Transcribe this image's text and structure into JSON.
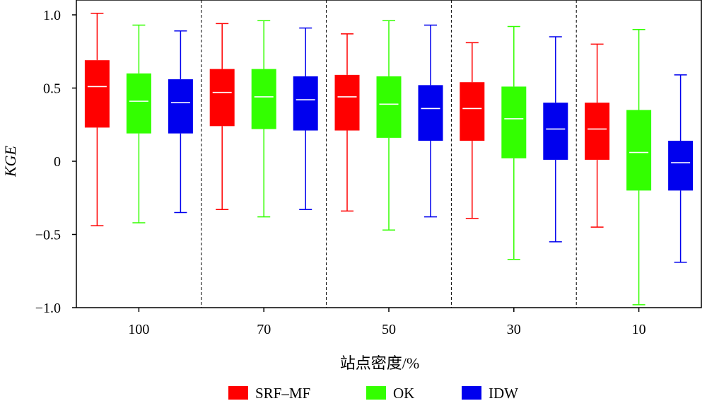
{
  "chart_data": {
    "type": "boxplot",
    "ylabel": "KGE",
    "xlabel": "站点密度/%",
    "ylim": [
      -1.0,
      1.0
    ],
    "yticks": [
      "1.0",
      "0.5",
      "0",
      "−0.5",
      "−1.0"
    ],
    "ytick_values": [
      1.0,
      0.5,
      0,
      -0.5,
      -1.0
    ],
    "categories": [
      "100",
      "70",
      "50",
      "30",
      "10"
    ],
    "grid": false,
    "legend_position": "bottom",
    "series": [
      {
        "name": "SRF–MF",
        "color": "#ff0000",
        "boxes": [
          {
            "min": -0.44,
            "q1": 0.23,
            "median": 0.51,
            "q3": 0.69,
            "max": 1.01
          },
          {
            "min": -0.33,
            "q1": 0.24,
            "median": 0.47,
            "q3": 0.63,
            "max": 0.94
          },
          {
            "min": -0.34,
            "q1": 0.21,
            "median": 0.44,
            "q3": 0.59,
            "max": 0.87
          },
          {
            "min": -0.39,
            "q1": 0.14,
            "median": 0.36,
            "q3": 0.54,
            "max": 0.81
          },
          {
            "min": -0.45,
            "q1": 0.01,
            "median": 0.22,
            "q3": 0.4,
            "max": 0.8
          }
        ]
      },
      {
        "name": "OK",
        "color": "#33ff00",
        "boxes": [
          {
            "min": -0.42,
            "q1": 0.19,
            "median": 0.41,
            "q3": 0.6,
            "max": 0.93
          },
          {
            "min": -0.38,
            "q1": 0.22,
            "median": 0.44,
            "q3": 0.63,
            "max": 0.96
          },
          {
            "min": -0.47,
            "q1": 0.16,
            "median": 0.39,
            "q3": 0.58,
            "max": 0.96
          },
          {
            "min": -0.67,
            "q1": 0.02,
            "median": 0.29,
            "q3": 0.51,
            "max": 0.92
          },
          {
            "min": -0.98,
            "q1": -0.2,
            "median": 0.06,
            "q3": 0.35,
            "max": 0.9
          }
        ]
      },
      {
        "name": "IDW",
        "color": "#0000ee",
        "boxes": [
          {
            "min": -0.35,
            "q1": 0.19,
            "median": 0.4,
            "q3": 0.56,
            "max": 0.89
          },
          {
            "min": -0.33,
            "q1": 0.21,
            "median": 0.42,
            "q3": 0.58,
            "max": 0.91
          },
          {
            "min": -0.38,
            "q1": 0.14,
            "median": 0.36,
            "q3": 0.52,
            "max": 0.93
          },
          {
            "min": -0.55,
            "q1": 0.01,
            "median": 0.22,
            "q3": 0.4,
            "max": 0.85
          },
          {
            "min": -0.69,
            "q1": -0.2,
            "median": -0.01,
            "q3": 0.14,
            "max": 0.59
          }
        ]
      }
    ]
  }
}
